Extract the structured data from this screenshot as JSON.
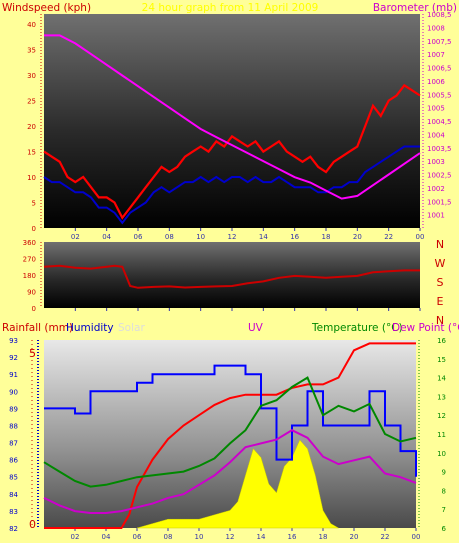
{
  "chart_data": [
    {
      "type": "line",
      "title": "24 hour graph from 11 April 2009",
      "title_color": "#ffff00",
      "ylabel_left": "Windspeed (kph)",
      "ylabel_right": "Barometer (mb)",
      "ylim_left": [
        0,
        42
      ],
      "ylim_right": [
        1000.5,
        1008.5
      ],
      "y_ticks_left": [
        "0",
        "5",
        "10",
        "15",
        "20",
        "25",
        "30",
        "35",
        "40"
      ],
      "y_ticks_right": [
        "1001",
        "1001,5",
        "1002",
        "1002,5",
        "1003",
        "1003,5",
        "1004",
        "1004,5",
        "1005",
        "1005,5",
        "1006",
        "1006,5",
        "1007",
        "1007,5",
        "1008",
        "1008,5"
      ],
      "x_ticks": [
        "02",
        "04",
        "06",
        "08",
        "10",
        "12",
        "14",
        "16",
        "18",
        "20",
        "22",
        "00"
      ],
      "xlim_hours": [
        0,
        24
      ],
      "series": [
        {
          "color": "#ff0000",
          "x": [
            0,
            0.5,
            1,
            1.5,
            2,
            2.5,
            3,
            3.5,
            4,
            4.5,
            5,
            5.5,
            6,
            6.5,
            7,
            7.5,
            8,
            8.5,
            9,
            9.5,
            10,
            10.5,
            11,
            11.5,
            12,
            12.5,
            13,
            13.5,
            14,
            14.5,
            15,
            15.5,
            16,
            16.5,
            17,
            17.5,
            18,
            18.5,
            19,
            19.5,
            20,
            20.5,
            21,
            21.5,
            22,
            22.5,
            23,
            23.5,
            24
          ],
          "values": [
            15,
            14,
            13,
            10,
            9,
            10,
            8,
            6,
            6,
            5,
            2,
            4,
            6,
            8,
            10,
            12,
            11,
            12,
            14,
            15,
            16,
            15,
            17,
            16,
            18,
            17,
            16,
            17,
            15,
            16,
            17,
            15,
            14,
            13,
            14,
            12,
            11,
            13,
            14,
            15,
            16,
            20,
            24,
            22,
            25,
            26,
            28,
            27,
            26
          ]
        },
        {
          "color": "#0000cc",
          "x": [
            0,
            0.5,
            1,
            1.5,
            2,
            2.5,
            3,
            3.5,
            4,
            4.5,
            5,
            5.5,
            6,
            6.5,
            7,
            7.5,
            8,
            8.5,
            9,
            9.5,
            10,
            10.5,
            11,
            11.5,
            12,
            12.5,
            13,
            13.5,
            14,
            14.5,
            15,
            15.5,
            16,
            16.5,
            17,
            17.5,
            18,
            18.5,
            19,
            19.5,
            20,
            20.5,
            21,
            21.5,
            22,
            22.5,
            23,
            23.5,
            24
          ],
          "values": [
            10,
            9,
            9,
            8,
            7,
            7,
            6,
            4,
            4,
            3,
            1,
            3,
            4,
            5,
            7,
            8,
            7,
            8,
            9,
            9,
            10,
            9,
            10,
            9,
            10,
            10,
            9,
            10,
            9,
            9,
            10,
            9,
            8,
            8,
            8,
            7,
            7,
            8,
            8,
            9,
            9,
            11,
            12,
            13,
            14,
            15,
            16,
            16,
            16
          ]
        },
        {
          "color": "#ff00ff",
          "x": [
            0,
            1,
            2,
            3,
            4,
            5,
            6,
            7,
            8,
            9,
            10,
            11,
            12,
            13,
            14,
            15,
            16,
            17,
            18,
            19,
            20,
            21,
            22,
            23,
            24
          ],
          "values": [
            1007.7,
            1007.7,
            1007.4,
            1007.0,
            1006.6,
            1006.2,
            1005.8,
            1005.4,
            1005.0,
            1004.6,
            1004.2,
            1003.9,
            1003.6,
            1003.3,
            1003.0,
            1002.7,
            1002.4,
            1002.2,
            1001.9,
            1001.6,
            1001.7,
            1002.1,
            1002.5,
            1002.9,
            1003.3
          ]
        }
      ]
    },
    {
      "type": "line",
      "ylabel_left": "",
      "y_ticks_left": [
        "0",
        "90",
        "180",
        "270",
        "360"
      ],
      "ylim_left": [
        0,
        360
      ],
      "compass_labels": [
        "N",
        "W",
        "S",
        "E",
        "N"
      ],
      "x_ticks": [
        "02",
        "04",
        "06",
        "08",
        "10",
        "12",
        "14",
        "16",
        "18",
        "20",
        "22",
        "00"
      ],
      "series": [
        {
          "color": "#cc0000",
          "x": [
            0,
            1,
            2,
            3,
            4,
            4.5,
            5,
            5.5,
            6,
            7,
            8,
            9,
            10,
            11,
            12,
            13,
            14,
            15,
            16,
            17,
            18,
            19,
            20,
            21,
            22,
            23,
            24
          ],
          "values": [
            225,
            230,
            220,
            215,
            225,
            230,
            225,
            120,
            110,
            115,
            118,
            112,
            115,
            118,
            120,
            135,
            145,
            165,
            175,
            170,
            165,
            170,
            175,
            195,
            200,
            205,
            205
          ]
        }
      ]
    },
    {
      "type": "line",
      "ylabel_rain": "Rainfall (mm)",
      "ylabel_humidity": "Humidity",
      "ylabel_solar": "Solar",
      "ylabel_uv": "UV",
      "ylabel_temp": "Temperature (°C)",
      "ylabel_dew": "Dew Point (°C)",
      "rain_label_value": "5",
      "rain_label_zero": "0",
      "humidity_ticks": [
        "82",
        "83",
        "84",
        "85",
        "86",
        "87",
        "88",
        "89",
        "90",
        "91",
        "92",
        "93"
      ],
      "temp_ticks": [
        "6",
        "7",
        "8",
        "9",
        "10",
        "11",
        "12",
        "13",
        "14",
        "15",
        "16"
      ],
      "x_ticks": [
        "02",
        "04",
        "06",
        "08",
        "10",
        "12",
        "14",
        "16",
        "18",
        "20",
        "22",
        "00"
      ],
      "series": [
        {
          "name": "Rainfall",
          "color": "#ff0000",
          "x": [
            0,
            5,
            5.5,
            6,
            7,
            8,
            9,
            10,
            11,
            12,
            13,
            14,
            15,
            16,
            17,
            18,
            19,
            20,
            21,
            22,
            23,
            24
          ],
          "values": [
            0,
            0,
            0.4,
            1.2,
            2.0,
            2.6,
            3.0,
            3.3,
            3.6,
            3.8,
            3.9,
            3.9,
            3.9,
            4.1,
            4.2,
            4.2,
            4.4,
            5.2,
            5.4,
            5.4,
            5.4,
            5.4
          ]
        },
        {
          "name": "Humidity",
          "color": "#0000ff",
          "x": [
            0,
            1,
            2,
            3,
            4,
            5,
            6,
            7,
            8,
            9,
            10,
            11,
            12,
            13,
            14,
            15,
            16,
            17,
            18,
            19,
            20,
            21,
            22,
            23,
            24
          ],
          "values": [
            89,
            89,
            88.7,
            90,
            90,
            90,
            90.5,
            91,
            91,
            91,
            91,
            91.5,
            91.5,
            91,
            89,
            86,
            88,
            90,
            88,
            88,
            88,
            90,
            88,
            86.5,
            85
          ]
        },
        {
          "name": "Temperature",
          "color": "#008800",
          "x": [
            0,
            1,
            2,
            3,
            4,
            5,
            6,
            7,
            8,
            9,
            10,
            11,
            12,
            13,
            14,
            15,
            16,
            17,
            18,
            19,
            20,
            21,
            22,
            23,
            24
          ],
          "values": [
            9.5,
            9,
            8.5,
            8.2,
            8.3,
            8.5,
            8.7,
            8.8,
            8.9,
            9,
            9.3,
            9.7,
            10.5,
            11.2,
            12.5,
            12.8,
            13.5,
            14,
            12,
            12.5,
            12.2,
            12.6,
            11,
            10.6,
            10.8
          ]
        },
        {
          "name": "Dew Point",
          "color": "#cc00cc",
          "x": [
            0,
            1,
            2,
            3,
            4,
            5,
            6,
            7,
            8,
            9,
            10,
            11,
            12,
            13,
            14,
            15,
            16,
            17,
            18,
            19,
            20,
            21,
            22,
            23,
            24
          ],
          "values": [
            7.6,
            7.2,
            6.9,
            6.8,
            6.8,
            6.9,
            7.1,
            7.3,
            7.6,
            7.8,
            8.3,
            8.8,
            9.5,
            10.3,
            10.5,
            10.7,
            11.2,
            10.8,
            9.8,
            9.4,
            9.6,
            9.8,
            8.9,
            8.7,
            8.4
          ]
        },
        {
          "name": "Solar",
          "color": "#ffff00",
          "x": [
            6,
            7,
            8,
            9,
            10,
            11,
            12,
            12.5,
            13,
            13.5,
            14,
            14.5,
            15,
            15.5,
            16,
            16.5,
            17,
            17.5,
            18,
            18.5,
            19
          ],
          "values": [
            0,
            0.05,
            0.1,
            0.1,
            0.1,
            0.15,
            0.2,
            0.3,
            0.6,
            0.9,
            0.8,
            0.5,
            0.4,
            0.7,
            0.8,
            1.0,
            0.9,
            0.6,
            0.2,
            0.05,
            0
          ]
        }
      ]
    }
  ]
}
